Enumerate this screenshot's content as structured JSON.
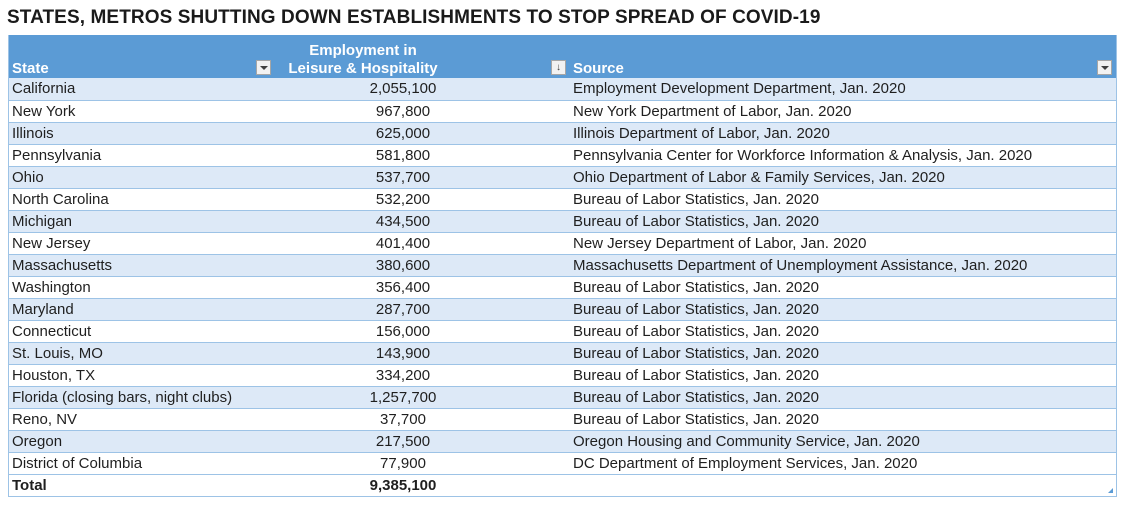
{
  "title": "STATES, METROS SHUTTING DOWN ESTABLISHMENTS TO STOP SPREAD OF COVID-19",
  "headers": {
    "state": "State",
    "employment_line1": "Employment in",
    "employment_line2": "Leisure & Hospitality",
    "source": "Source"
  },
  "rows": [
    {
      "state": "California",
      "employment": "2,055,100",
      "source": "Employment Development Department, Jan. 2020"
    },
    {
      "state": "New York",
      "employment": "967,800",
      "source": "New York Department of Labor, Jan. 2020"
    },
    {
      "state": "Illinois",
      "employment": "625,000",
      "source": "Illinois Department of Labor, Jan. 2020"
    },
    {
      "state": "Pennsylvania",
      "employment": "581,800",
      "source": "Pennsylvania Center for Workforce Information & Analysis, Jan. 2020"
    },
    {
      "state": "Ohio",
      "employment": "537,700",
      "source": "Ohio Department of Labor & Family Services, Jan. 2020"
    },
    {
      "state": "North Carolina",
      "employment": "532,200",
      "source": "Bureau of Labor Statistics, Jan. 2020"
    },
    {
      "state": "Michigan",
      "employment": "434,500",
      "source": "Bureau of Labor Statistics, Jan. 2020"
    },
    {
      "state": "New Jersey",
      "employment": "401,400",
      "source": "New Jersey Department of Labor, Jan. 2020"
    },
    {
      "state": "Massachusetts",
      "employment": "380,600",
      "source": "Massachusetts Department of Unemployment Assistance, Jan. 2020"
    },
    {
      "state": "Washington",
      "employment": "356,400",
      "source": "Bureau of Labor Statistics, Jan. 2020"
    },
    {
      "state": "Maryland",
      "employment": "287,700",
      "source": "Bureau of Labor Statistics, Jan. 2020"
    },
    {
      "state": "Connecticut",
      "employment": "156,000",
      "source": "Bureau of Labor Statistics, Jan. 2020"
    },
    {
      "state": "St. Louis, MO",
      "employment": "143,900",
      "source": "Bureau of Labor Statistics, Jan. 2020"
    },
    {
      "state": "Houston, TX",
      "employment": "334,200",
      "source": "Bureau of Labor Statistics, Jan. 2020"
    },
    {
      "state": "Florida (closing bars, night clubs)",
      "employment": "1,257,700",
      "source": "Bureau of Labor Statistics, Jan. 2020"
    },
    {
      "state": "Reno, NV",
      "employment": "37,700",
      "source": "Bureau of Labor Statistics, Jan. 2020"
    },
    {
      "state": "Oregon",
      "employment": "217,500",
      "source": "Oregon Housing and Community Service, Jan. 2020"
    },
    {
      "state": "District of Columbia",
      "employment": "77,900",
      "source": "DC Department of Employment Services, Jan. 2020"
    }
  ],
  "total": {
    "label": "Total",
    "employment": "9,385,100"
  },
  "icons": {
    "state_filter": "dropdown-arrow-icon",
    "employment_sort": "sort-descending-icon",
    "source_filter": "dropdown-arrow-icon"
  },
  "colors": {
    "header": "#5b9bd5",
    "band": "#dde9f7",
    "border": "#9dc3e6"
  }
}
